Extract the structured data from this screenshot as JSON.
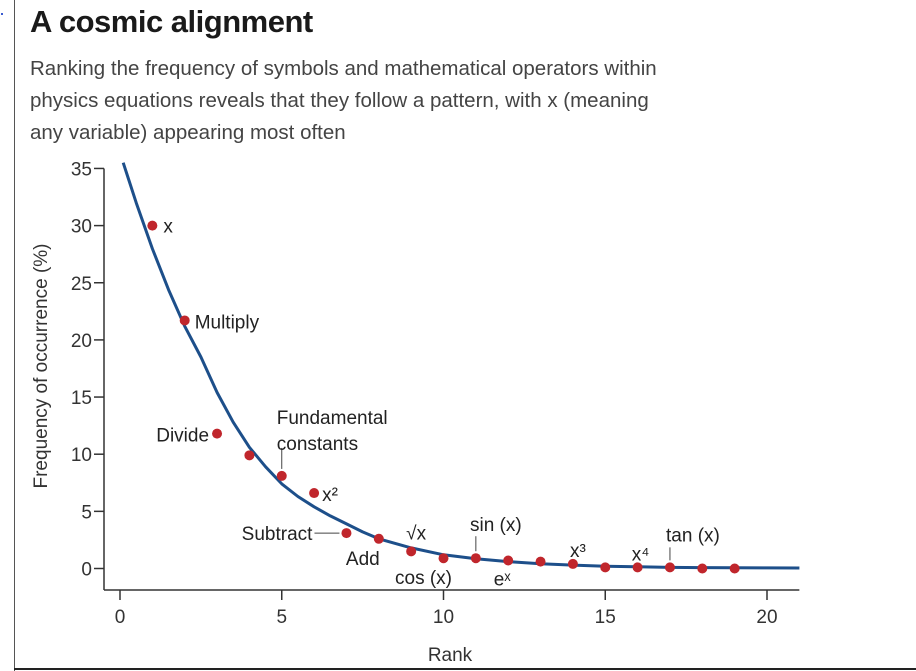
{
  "title": "A cosmic alignment",
  "subtitle": "Ranking the frequency of symbols and mathematical operators within physics equations reveals that they follow a pattern, with x (meaning any variable) appearing most often",
  "colors": {
    "points": "#c0262c",
    "curve": "#1d4f8a",
    "axis": "#333333"
  },
  "chart_data": {
    "type": "scatter",
    "xlabel": "Rank",
    "ylabel": "Frequency of occurrence (%)",
    "xlim": [
      0,
      21
    ],
    "ylim": [
      0,
      35
    ],
    "x_ticks": [
      0,
      5,
      10,
      15,
      20
    ],
    "y_ticks": [
      0,
      5,
      10,
      15,
      20,
      25,
      30,
      35
    ],
    "x_tick_labels": [
      "0",
      "5",
      "10",
      "15",
      "20"
    ],
    "y_tick_labels": [
      "0",
      "5",
      "10",
      "15",
      "20",
      "25",
      "30",
      "35"
    ],
    "points": [
      {
        "x": 1,
        "y": 30.0,
        "label": "x"
      },
      {
        "x": 2,
        "y": 21.7,
        "label": "Multiply"
      },
      {
        "x": 3,
        "y": 11.8,
        "label": "Divide"
      },
      {
        "x": 4,
        "y": 9.9,
        "label": ""
      },
      {
        "x": 5,
        "y": 8.1,
        "label": "Fundamental constants"
      },
      {
        "x": 6,
        "y": 6.6,
        "label": "x²"
      },
      {
        "x": 7,
        "y": 3.1,
        "label": "Subtract"
      },
      {
        "x": 8,
        "y": 2.6,
        "label": "Add"
      },
      {
        "x": 9,
        "y": 1.5,
        "label": "√x"
      },
      {
        "x": 10,
        "y": 0.9,
        "label": "cos (x)"
      },
      {
        "x": 11,
        "y": 0.9,
        "label": "sin (x)"
      },
      {
        "x": 12,
        "y": 0.7,
        "label": "eˣ"
      },
      {
        "x": 13,
        "y": 0.6,
        "label": ""
      },
      {
        "x": 14,
        "y": 0.4,
        "label": "x³"
      },
      {
        "x": 15,
        "y": 0.1,
        "label": ""
      },
      {
        "x": 16,
        "y": 0.1,
        "label": "x⁴"
      },
      {
        "x": 17,
        "y": 0.1,
        "label": "tan (x)"
      },
      {
        "x": 18,
        "y": 0.0,
        "label": ""
      },
      {
        "x": 19,
        "y": 0.0,
        "label": ""
      }
    ],
    "fit_curve": {
      "x": [
        0.1,
        0.5,
        1,
        1.5,
        2,
        2.5,
        3,
        3.5,
        4,
        4.5,
        5,
        5.5,
        6,
        6.5,
        7,
        7.5,
        8,
        9,
        10,
        11,
        12,
        13,
        14,
        15,
        16,
        17,
        18,
        19,
        20,
        21
      ],
      "y": [
        35.5,
        32.0,
        28.0,
        24.4,
        21.2,
        18.5,
        15.4,
        12.8,
        10.6,
        8.9,
        7.4,
        6.3,
        5.4,
        4.6,
        3.9,
        3.2,
        2.6,
        1.8,
        1.2,
        0.85,
        0.6,
        0.42,
        0.3,
        0.2,
        0.15,
        0.1,
        0.08,
        0.06,
        0.05,
        0.04
      ]
    }
  }
}
